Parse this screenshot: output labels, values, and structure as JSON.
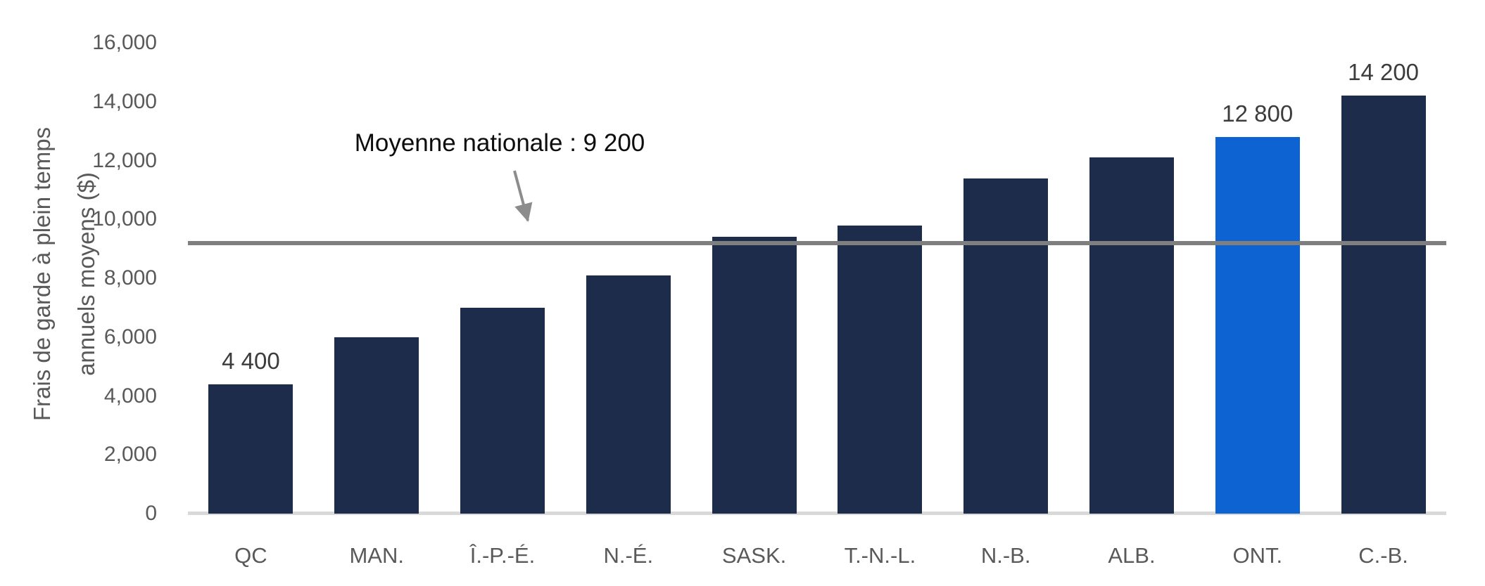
{
  "chart_data": {
    "type": "bar",
    "title": "",
    "xlabel": "",
    "ylabel": "Frais de garde à plein temps annuels moyens ($)",
    "ylabel_lines": [
      "Frais de garde à plein temps",
      "annuels moyens ($)"
    ],
    "categories": [
      "QC",
      "MAN.",
      "Î.-P.-É.",
      "N.-É.",
      "SASK.",
      "T.-N.-L.",
      "N.-B.",
      "ALB.",
      "ONT.",
      "C.-B."
    ],
    "values": [
      4400,
      6000,
      7000,
      8100,
      9400,
      9800,
      11400,
      12100,
      12800,
      14200
    ],
    "bar_labels": [
      "4 400",
      null,
      null,
      null,
      null,
      null,
      null,
      null,
      "12 800",
      "14 200"
    ],
    "highlighted_category": "ONT.",
    "highlight_index": 8,
    "ylim": [
      0,
      16000
    ],
    "y_ticks": [
      {
        "value": 0,
        "label": "0"
      },
      {
        "value": 2000,
        "label": "2,000"
      },
      {
        "value": 4000,
        "label": "4,000"
      },
      {
        "value": 6000,
        "label": "6,000"
      },
      {
        "value": 8000,
        "label": "8,000"
      },
      {
        "value": 10000,
        "label": "10,000"
      },
      {
        "value": 12000,
        "label": "12,000"
      },
      {
        "value": 14000,
        "label": "14,000"
      },
      {
        "value": 16000,
        "label": "16,000"
      }
    ],
    "grid": false,
    "legend": null,
    "average_line": {
      "value": 9200,
      "label": "Moyenne nationale : 9 200"
    },
    "colors": {
      "bar": "#1D2C4A",
      "highlight": "#0E63D3",
      "average_line": "#7F7F7F",
      "arrow": "#8C8C8C",
      "axis_line": "#D9D9D9",
      "tick_text": "#595959",
      "value_label_text": "#3C3C3C",
      "annotation_text": "#0D0D0D"
    }
  }
}
